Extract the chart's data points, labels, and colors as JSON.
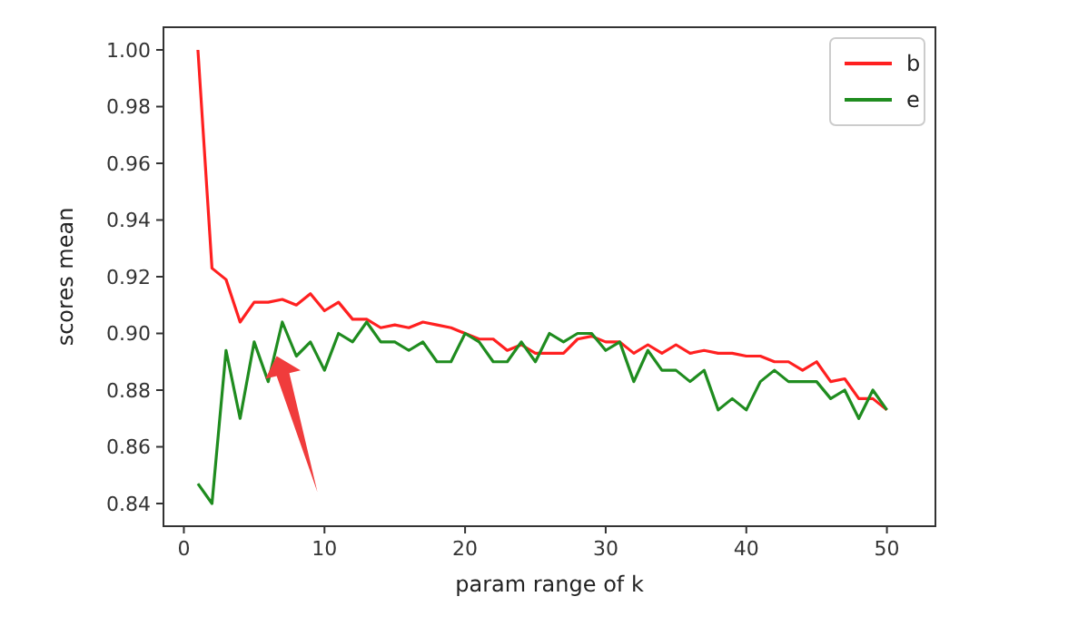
{
  "chart_data": {
    "type": "line",
    "xlabel": "param range of k",
    "ylabel": "scores mean",
    "x": [
      1,
      2,
      3,
      4,
      5,
      6,
      7,
      8,
      9,
      10,
      11,
      12,
      13,
      14,
      15,
      16,
      17,
      18,
      19,
      20,
      21,
      22,
      23,
      24,
      25,
      26,
      27,
      28,
      29,
      30,
      31,
      32,
      33,
      34,
      35,
      36,
      37,
      38,
      39,
      40,
      41,
      42,
      43,
      44,
      45,
      46,
      47,
      48,
      49,
      50
    ],
    "series": [
      {
        "name": "b",
        "color": "#ff2020",
        "values": [
          1.0,
          0.923,
          0.919,
          0.904,
          0.911,
          0.911,
          0.912,
          0.91,
          0.914,
          0.908,
          0.911,
          0.905,
          0.905,
          0.902,
          0.903,
          0.902,
          0.904,
          0.903,
          0.902,
          0.9,
          0.898,
          0.898,
          0.894,
          0.896,
          0.893,
          0.893,
          0.893,
          0.898,
          0.899,
          0.897,
          0.897,
          0.893,
          0.896,
          0.893,
          0.896,
          0.893,
          0.894,
          0.893,
          0.893,
          0.892,
          0.892,
          0.89,
          0.89,
          0.887,
          0.89,
          0.883,
          0.884,
          0.877,
          0.877,
          0.873
        ]
      },
      {
        "name": "e",
        "color": "#1f8c1f",
        "values": [
          0.847,
          0.84,
          0.894,
          0.87,
          0.897,
          0.883,
          0.904,
          0.892,
          0.897,
          0.887,
          0.9,
          0.897,
          0.904,
          0.897,
          0.897,
          0.894,
          0.897,
          0.89,
          0.89,
          0.9,
          0.897,
          0.89,
          0.89,
          0.897,
          0.89,
          0.9,
          0.897,
          0.9,
          0.9,
          0.894,
          0.897,
          0.883,
          0.894,
          0.887,
          0.887,
          0.883,
          0.887,
          0.873,
          0.877,
          0.873,
          0.883,
          0.887,
          0.883,
          0.883,
          0.883,
          0.877,
          0.88,
          0.87,
          0.88,
          0.873
        ]
      }
    ],
    "xlim": [
      -1.45,
      53.45
    ],
    "xticks": [
      0,
      10,
      20,
      30,
      40,
      50
    ],
    "ylim": [
      0.832,
      1.008
    ],
    "yticks": [
      {
        "value": 0.84,
        "label": "0.84"
      },
      {
        "value": 0.86,
        "label": "0.86"
      },
      {
        "value": 0.88,
        "label": "0.88"
      },
      {
        "value": 0.9,
        "label": "0.90"
      },
      {
        "value": 0.92,
        "label": "0.92"
      },
      {
        "value": 0.94,
        "label": "0.94"
      },
      {
        "value": 0.96,
        "label": "0.96"
      },
      {
        "value": 0.98,
        "label": "0.98"
      },
      {
        "value": 1.0,
        "label": "1.00"
      }
    ],
    "legend": "top right",
    "grid": false,
    "marker": "none",
    "line_style": "solid"
  }
}
